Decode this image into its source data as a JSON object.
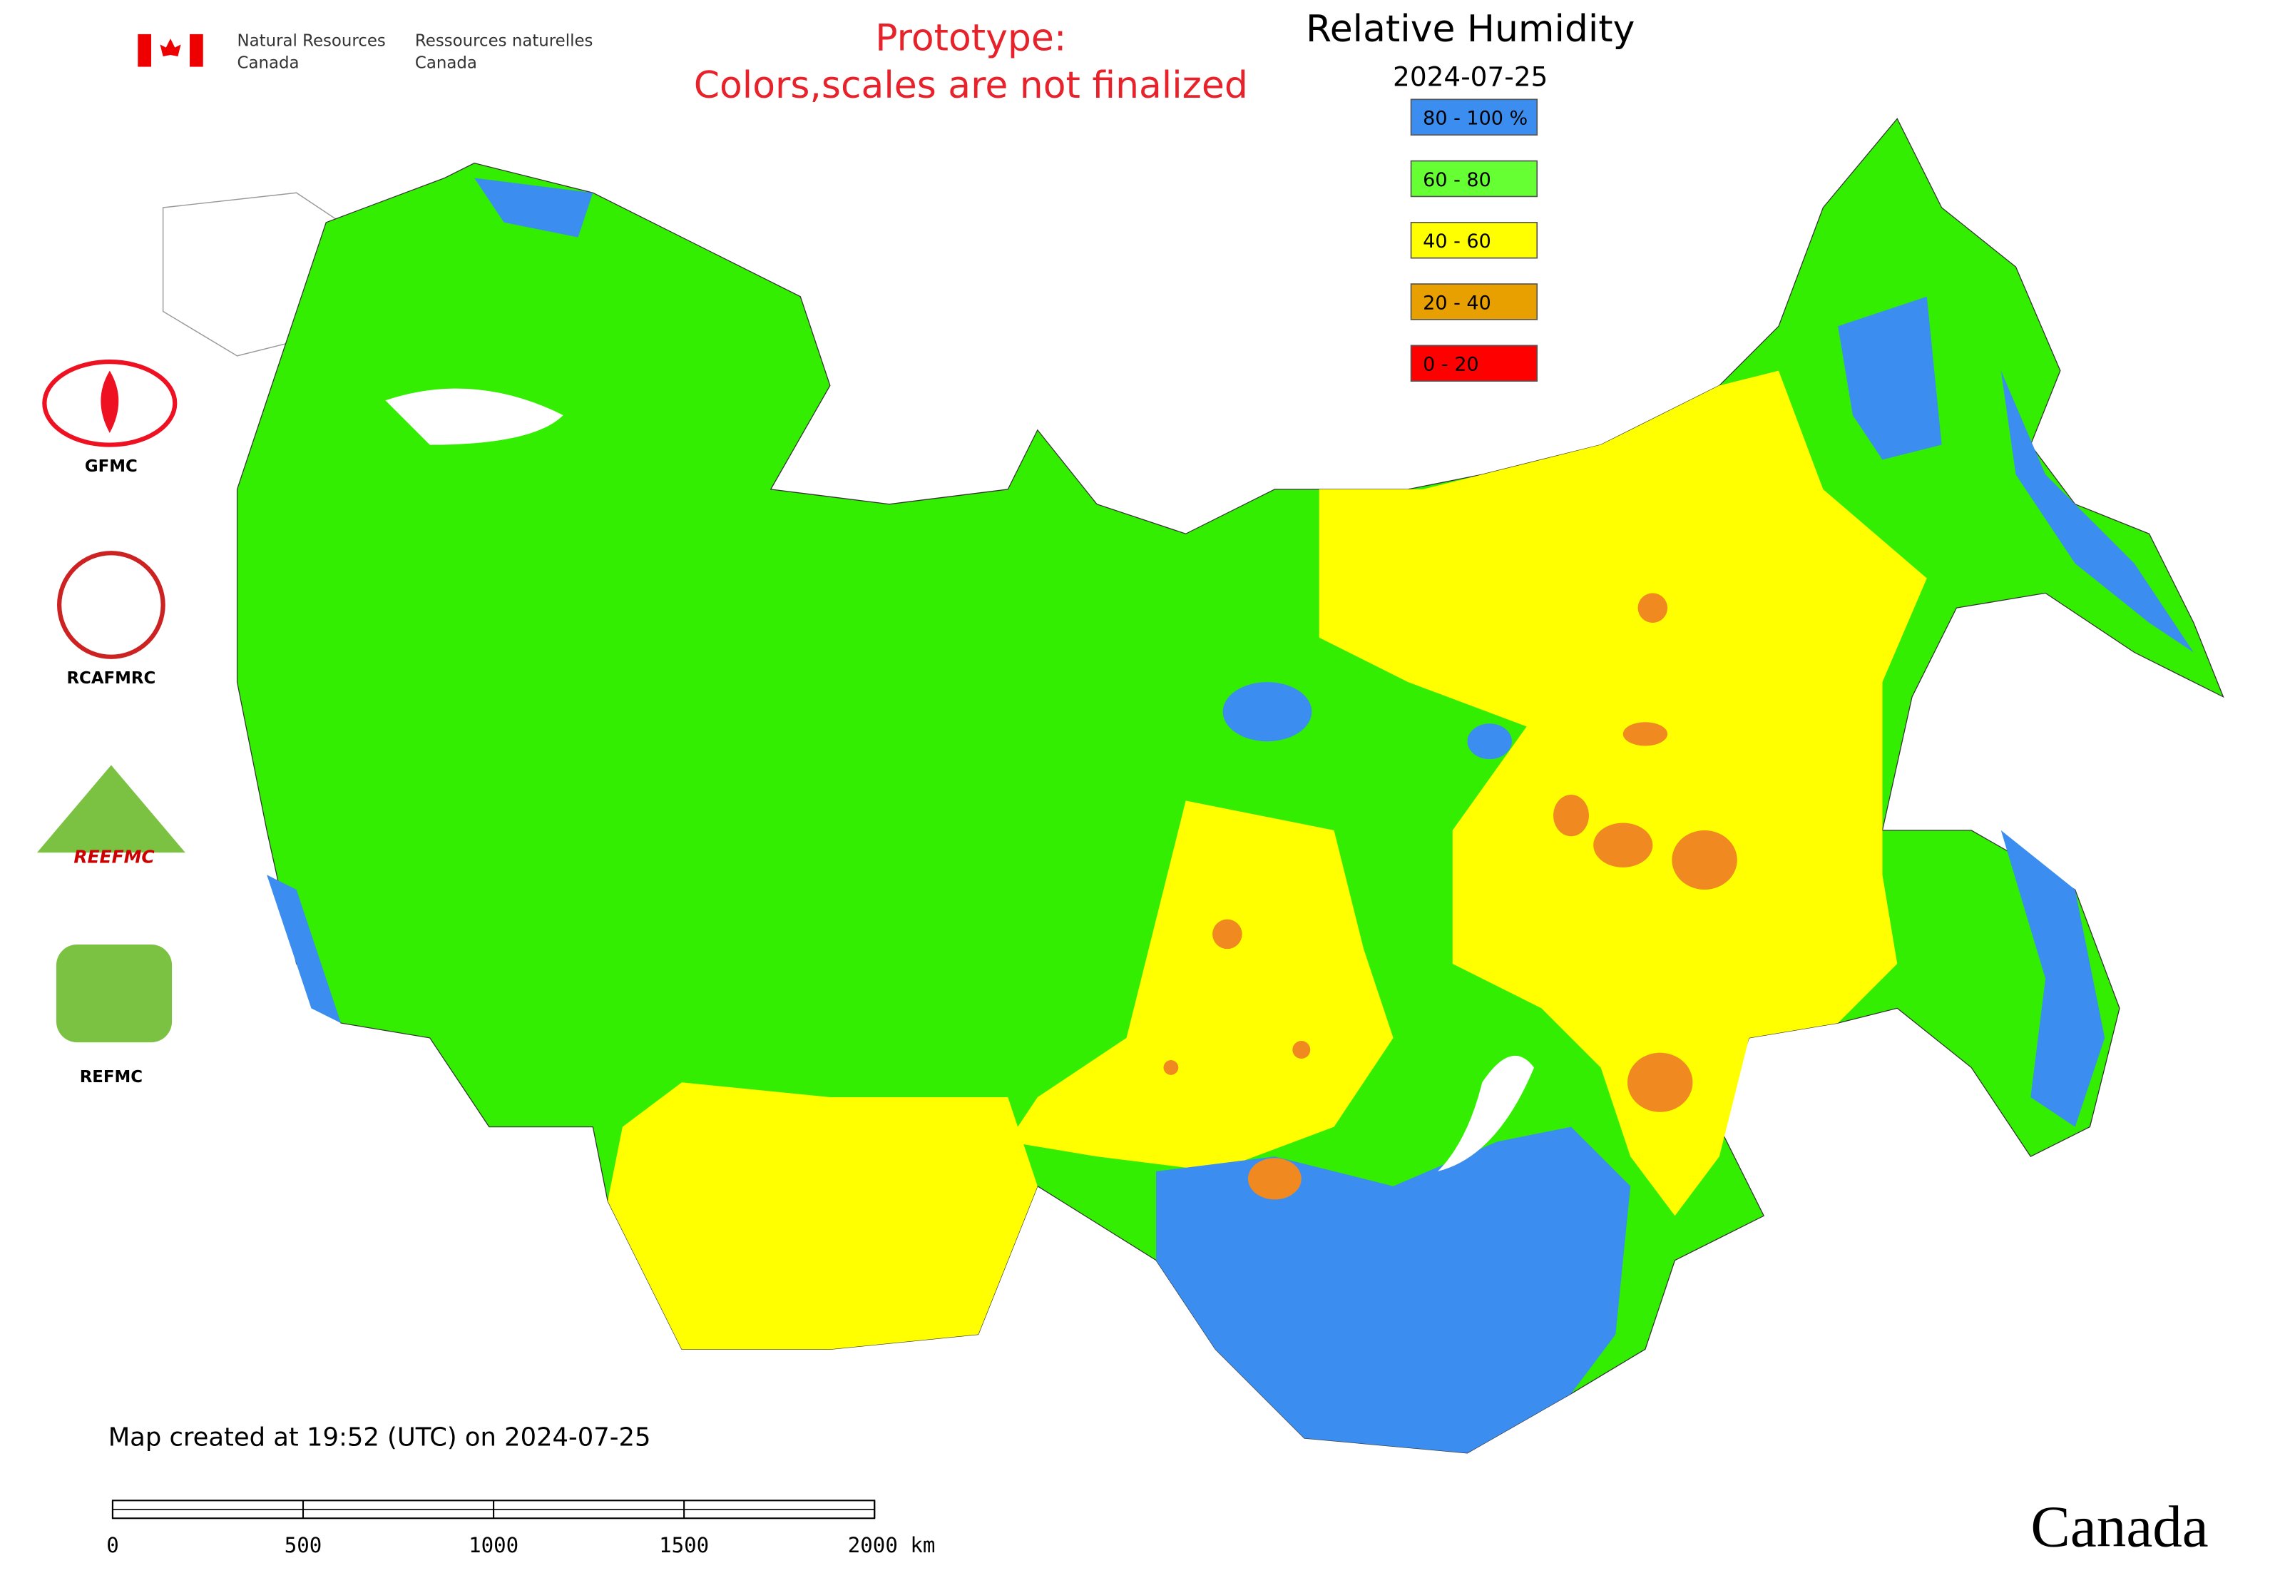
{
  "header": {
    "agency_en": [
      "Natural Resources",
      "Canada"
    ],
    "agency_fr": [
      "Ressources naturelles",
      "Canada"
    ]
  },
  "notice": [
    "Prototype:",
    "Colors,scales are not finalized"
  ],
  "title": "Relative Humidity",
  "date": "2024-07-25",
  "legend": [
    {
      "label": "80 - 100 %",
      "color": "#3b8ef0"
    },
    {
      "label": "60 - 80",
      "color": "#66ff33"
    },
    {
      "label": "40 - 60",
      "color": "#ffff00"
    },
    {
      "label": "20 - 40",
      "color": "#e8a000"
    },
    {
      "label": "0 - 20",
      "color": "#ff0000"
    }
  ],
  "logos": [
    "GFMC",
    "RCAFMRC",
    "REEFMC",
    "REFMC"
  ],
  "footer": "Map created at 19:52 (UTC) on 2024-07-25",
  "scale_bar": {
    "ticks": [
      0,
      500,
      1000,
      1500,
      {
        "value": 2000,
        "label": "2000 km"
      }
    ]
  },
  "wordmark": "Canada"
}
